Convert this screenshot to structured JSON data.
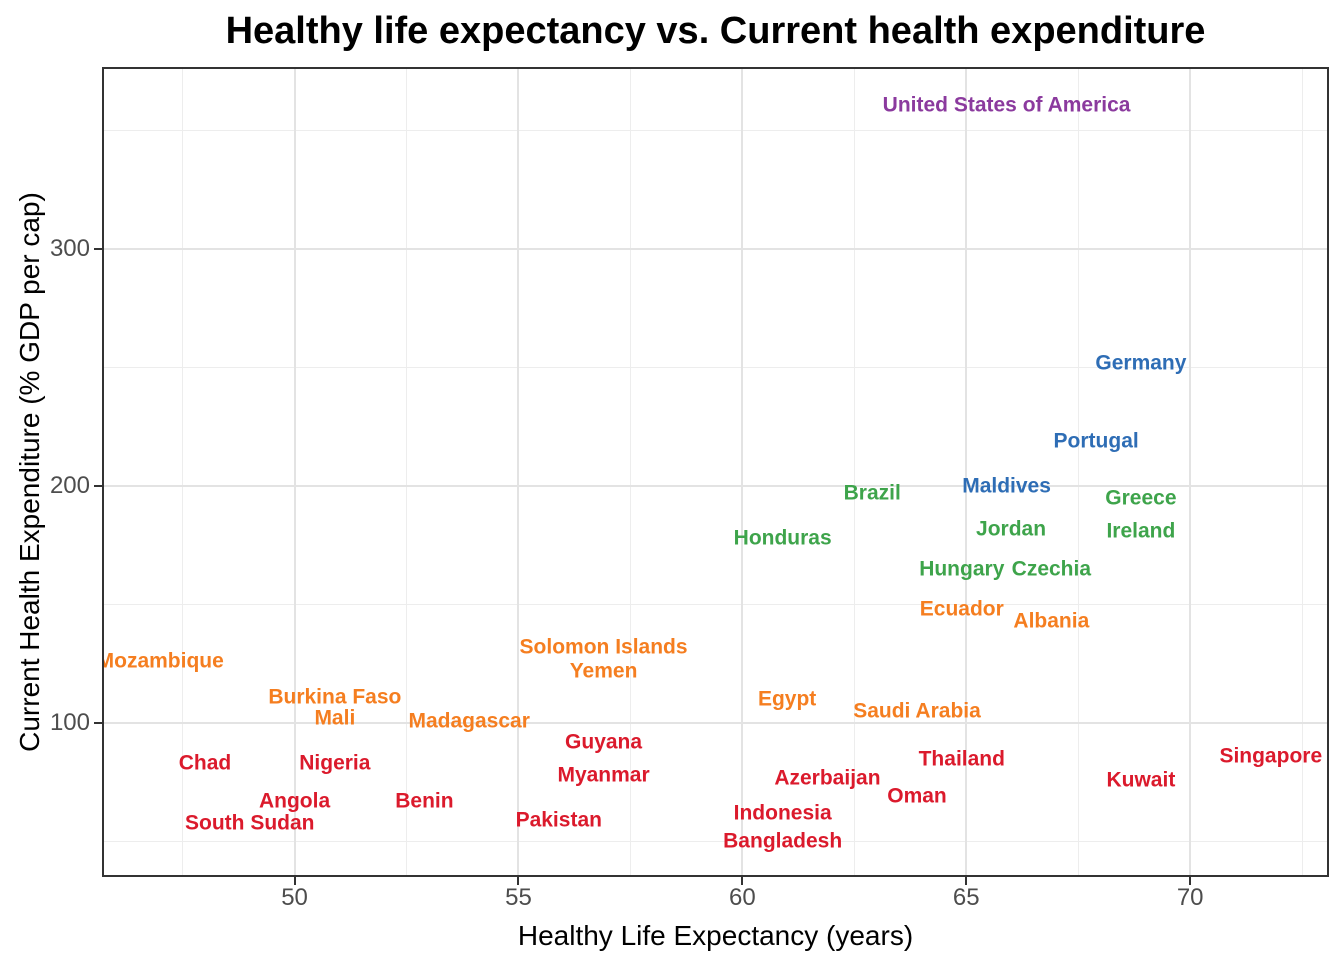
{
  "chart_data": {
    "type": "scatter",
    "point_style": "text-labels",
    "title": "Healthy life expectancy vs. Current health expenditure",
    "xlabel": "Healthy Life Expectancy (years)",
    "ylabel": "Current Health Expenditure (% GDP per cap)",
    "xlim": [
      45.7,
      73.1
    ],
    "ylim": [
      35,
      377
    ],
    "x_ticks": [
      50,
      55,
      60,
      65,
      70
    ],
    "x_minor_ticks": [
      47.5,
      52.5,
      57.5,
      62.5,
      67.5,
      72.5
    ],
    "y_ticks": [
      100,
      200,
      300
    ],
    "y_minor_ticks": [
      50,
      150,
      250,
      350
    ],
    "grid": true,
    "legend_position": "none",
    "group_colors": {
      "red": "#DB1A2C",
      "orange": "#F57E20",
      "green": "#3EA44B",
      "blue": "#2E6DB5",
      "purple": "#8B3A9E"
    },
    "points": [
      {
        "label": "United States of America",
        "x": 65.9,
        "y": 361,
        "group": "purple"
      },
      {
        "label": "Germany",
        "x": 68.9,
        "y": 252,
        "group": "blue"
      },
      {
        "label": "Portugal",
        "x": 67.9,
        "y": 219,
        "group": "blue"
      },
      {
        "label": "Maldives",
        "x": 65.9,
        "y": 200,
        "group": "blue"
      },
      {
        "label": "Greece",
        "x": 68.9,
        "y": 195,
        "group": "green"
      },
      {
        "label": "Brazil",
        "x": 62.9,
        "y": 197,
        "group": "green"
      },
      {
        "label": "Ireland",
        "x": 68.9,
        "y": 181,
        "group": "green"
      },
      {
        "label": "Jordan",
        "x": 66.0,
        "y": 182,
        "group": "green"
      },
      {
        "label": "Honduras",
        "x": 60.9,
        "y": 178,
        "group": "green"
      },
      {
        "label": "Hungary",
        "x": 64.9,
        "y": 165,
        "group": "green"
      },
      {
        "label": "Czechia",
        "x": 66.9,
        "y": 165,
        "group": "green"
      },
      {
        "label": "Ecuador",
        "x": 64.9,
        "y": 148,
        "group": "orange"
      },
      {
        "label": "Albania",
        "x": 66.9,
        "y": 143,
        "group": "orange"
      },
      {
        "label": "Mozambique",
        "x": 47.0,
        "y": 126,
        "group": "orange"
      },
      {
        "label": "Solomon Islands",
        "x": 56.9,
        "y": 132,
        "group": "orange"
      },
      {
        "label": "Yemen",
        "x": 56.9,
        "y": 122,
        "group": "orange"
      },
      {
        "label": "Burkina Faso",
        "x": 50.9,
        "y": 111,
        "group": "orange"
      },
      {
        "label": "Mali",
        "x": 50.9,
        "y": 102,
        "group": "orange"
      },
      {
        "label": "Madagascar",
        "x": 53.9,
        "y": 101,
        "group": "orange"
      },
      {
        "label": "Egypt",
        "x": 61.0,
        "y": 110,
        "group": "orange"
      },
      {
        "label": "Saudi Arabia",
        "x": 63.9,
        "y": 105,
        "group": "orange"
      },
      {
        "label": "Chad",
        "x": 48.0,
        "y": 83,
        "group": "red"
      },
      {
        "label": "Nigeria",
        "x": 50.9,
        "y": 83,
        "group": "red"
      },
      {
        "label": "Angola",
        "x": 50.0,
        "y": 67,
        "group": "red"
      },
      {
        "label": "South Sudan",
        "x": 49.0,
        "y": 58,
        "group": "red"
      },
      {
        "label": "Benin",
        "x": 52.9,
        "y": 67,
        "group": "red"
      },
      {
        "label": "Pakistan",
        "x": 55.9,
        "y": 59,
        "group": "red"
      },
      {
        "label": "Guyana",
        "x": 56.9,
        "y": 92,
        "group": "red"
      },
      {
        "label": "Myanmar",
        "x": 56.9,
        "y": 78,
        "group": "red"
      },
      {
        "label": "Indonesia",
        "x": 60.9,
        "y": 62,
        "group": "red"
      },
      {
        "label": "Bangladesh",
        "x": 60.9,
        "y": 50,
        "group": "red"
      },
      {
        "label": "Azerbaijan",
        "x": 61.9,
        "y": 77,
        "group": "red"
      },
      {
        "label": "Oman",
        "x": 63.9,
        "y": 69,
        "group": "red"
      },
      {
        "label": "Thailand",
        "x": 64.9,
        "y": 85,
        "group": "red"
      },
      {
        "label": "Kuwait",
        "x": 68.9,
        "y": 76,
        "group": "red"
      },
      {
        "label": "Singapore",
        "x": 71.8,
        "y": 86,
        "group": "red"
      }
    ]
  },
  "styles": {
    "title_color": "#000000",
    "axis_title_color": "#000000",
    "tick_label_color": "#4D4D4D",
    "tick_mark_color": "#333333",
    "panel_border_color": "#333333",
    "grid_major_color": "#E3E3E3",
    "grid_minor_color": "#EDEDED",
    "background_color": "#FFFFFF"
  }
}
